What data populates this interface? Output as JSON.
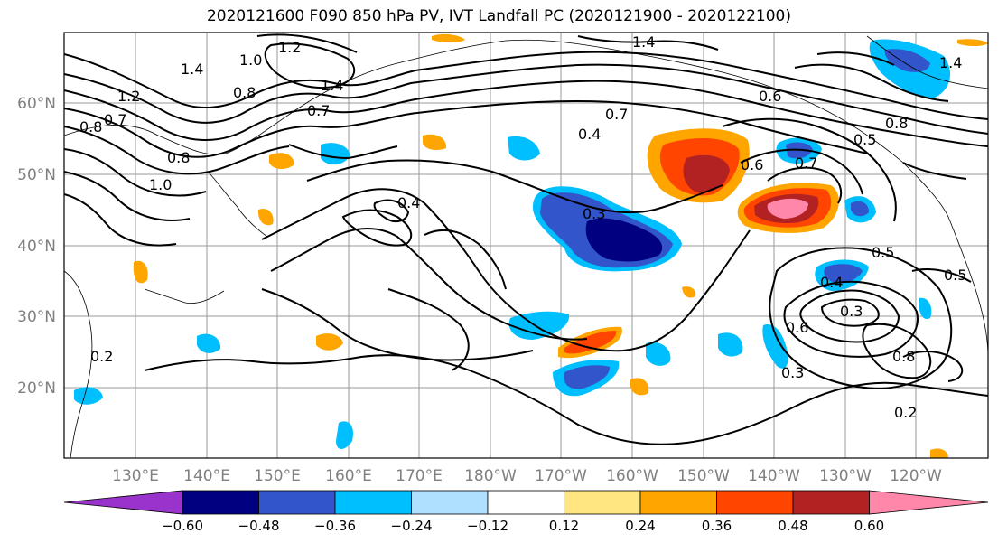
{
  "title": "2020121600 F090 850 hPa PV, IVT Landfall PC (2020121900 - 2020122100)",
  "lat_labels": [
    "60°N",
    "50°N",
    "40°N",
    "30°N",
    "20°N"
  ],
  "lon_labels": [
    "130°E",
    "140°E",
    "150°E",
    "160°E",
    "170°E",
    "180°W",
    "170°W",
    "160°W",
    "150°W",
    "140°W",
    "130°W",
    "120°W"
  ],
  "colorbar": {
    "colors": [
      "#9933cc",
      "#000080",
      "#3355cc",
      "#00bfff",
      "#b0e0ff",
      "#ffffff",
      "#ffe680",
      "#ffa500",
      "#ff4500",
      "#b22222",
      "#ff88aa"
    ],
    "tick_labels": [
      "−0.60",
      "−0.48",
      "−0.36",
      "−0.24",
      "−0.12",
      "0.12",
      "0.24",
      "0.36",
      "0.48",
      "0.60"
    ]
  },
  "contour_labels": [
    "1.4",
    "1.2",
    "1.0",
    "0.8",
    "0.7",
    "1.2",
    "0.8",
    "1.4",
    "0.7",
    "0.7",
    "0.4",
    "0.6",
    "0.3",
    "0.4",
    "0.6",
    "0.7",
    "0.4",
    "0.5",
    "0.3",
    "0.6",
    "0.8",
    "0.3",
    "0.2",
    "0.2",
    "1.4",
    "0.5",
    "0.8",
    "0.5",
    "1.0",
    "0.8",
    "1.4"
  ]
}
